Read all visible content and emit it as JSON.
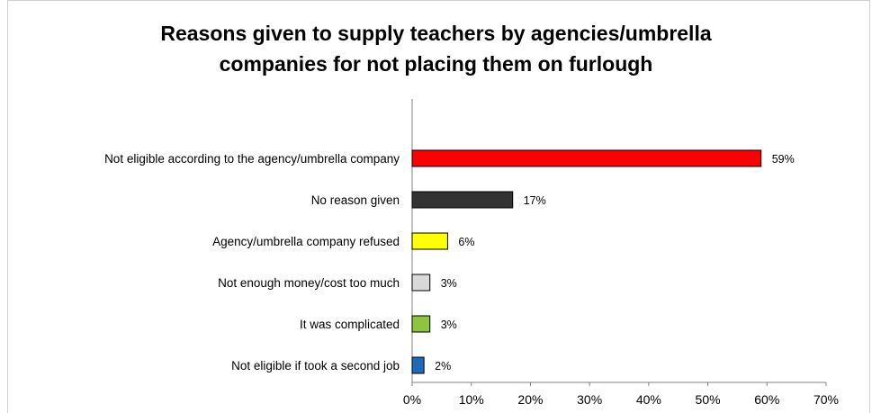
{
  "chart_data": {
    "type": "bar",
    "orientation": "horizontal",
    "title_lines": [
      "Reasons given to supply teachers by agencies/umbrella",
      "companies for not placing them on furlough"
    ],
    "categories": [
      "Not eligible according to the agency/umbrella company",
      "No reason given",
      "Agency/umbrella company refused",
      "Not enough money/cost too much",
      "It was complicated",
      "Not eligible if took a second job"
    ],
    "values": [
      59,
      17,
      6,
      3,
      3,
      2
    ],
    "value_labels": [
      "59%",
      "17%",
      "6%",
      "3%",
      "3%",
      "2%"
    ],
    "colors": [
      "#ff0000",
      "#333333",
      "#ffff00",
      "#d9d9d9",
      "#8cc63f",
      "#1f6ab8"
    ],
    "xlim": [
      0,
      70
    ],
    "x_ticks": [
      "0%",
      "10%",
      "20%",
      "30%",
      "40%",
      "50%",
      "60%",
      "70%"
    ],
    "grid": false,
    "legend": "none"
  }
}
